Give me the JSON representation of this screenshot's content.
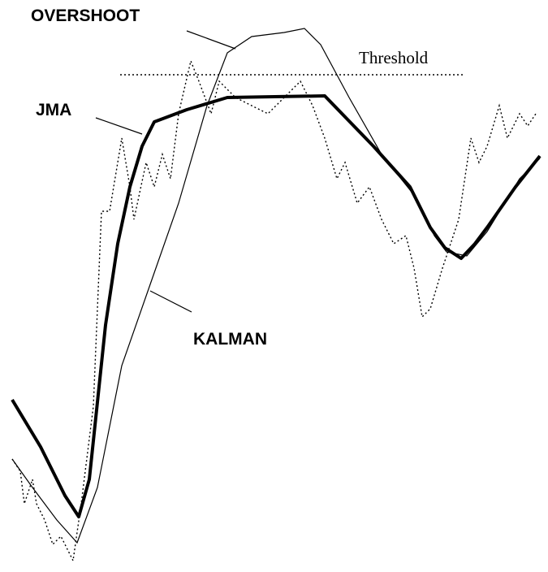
{
  "labels": {
    "overshoot": "OVERSHOOT",
    "threshold": "Threshold",
    "jma": "JMA",
    "kalman": "KALMAN"
  }
}
